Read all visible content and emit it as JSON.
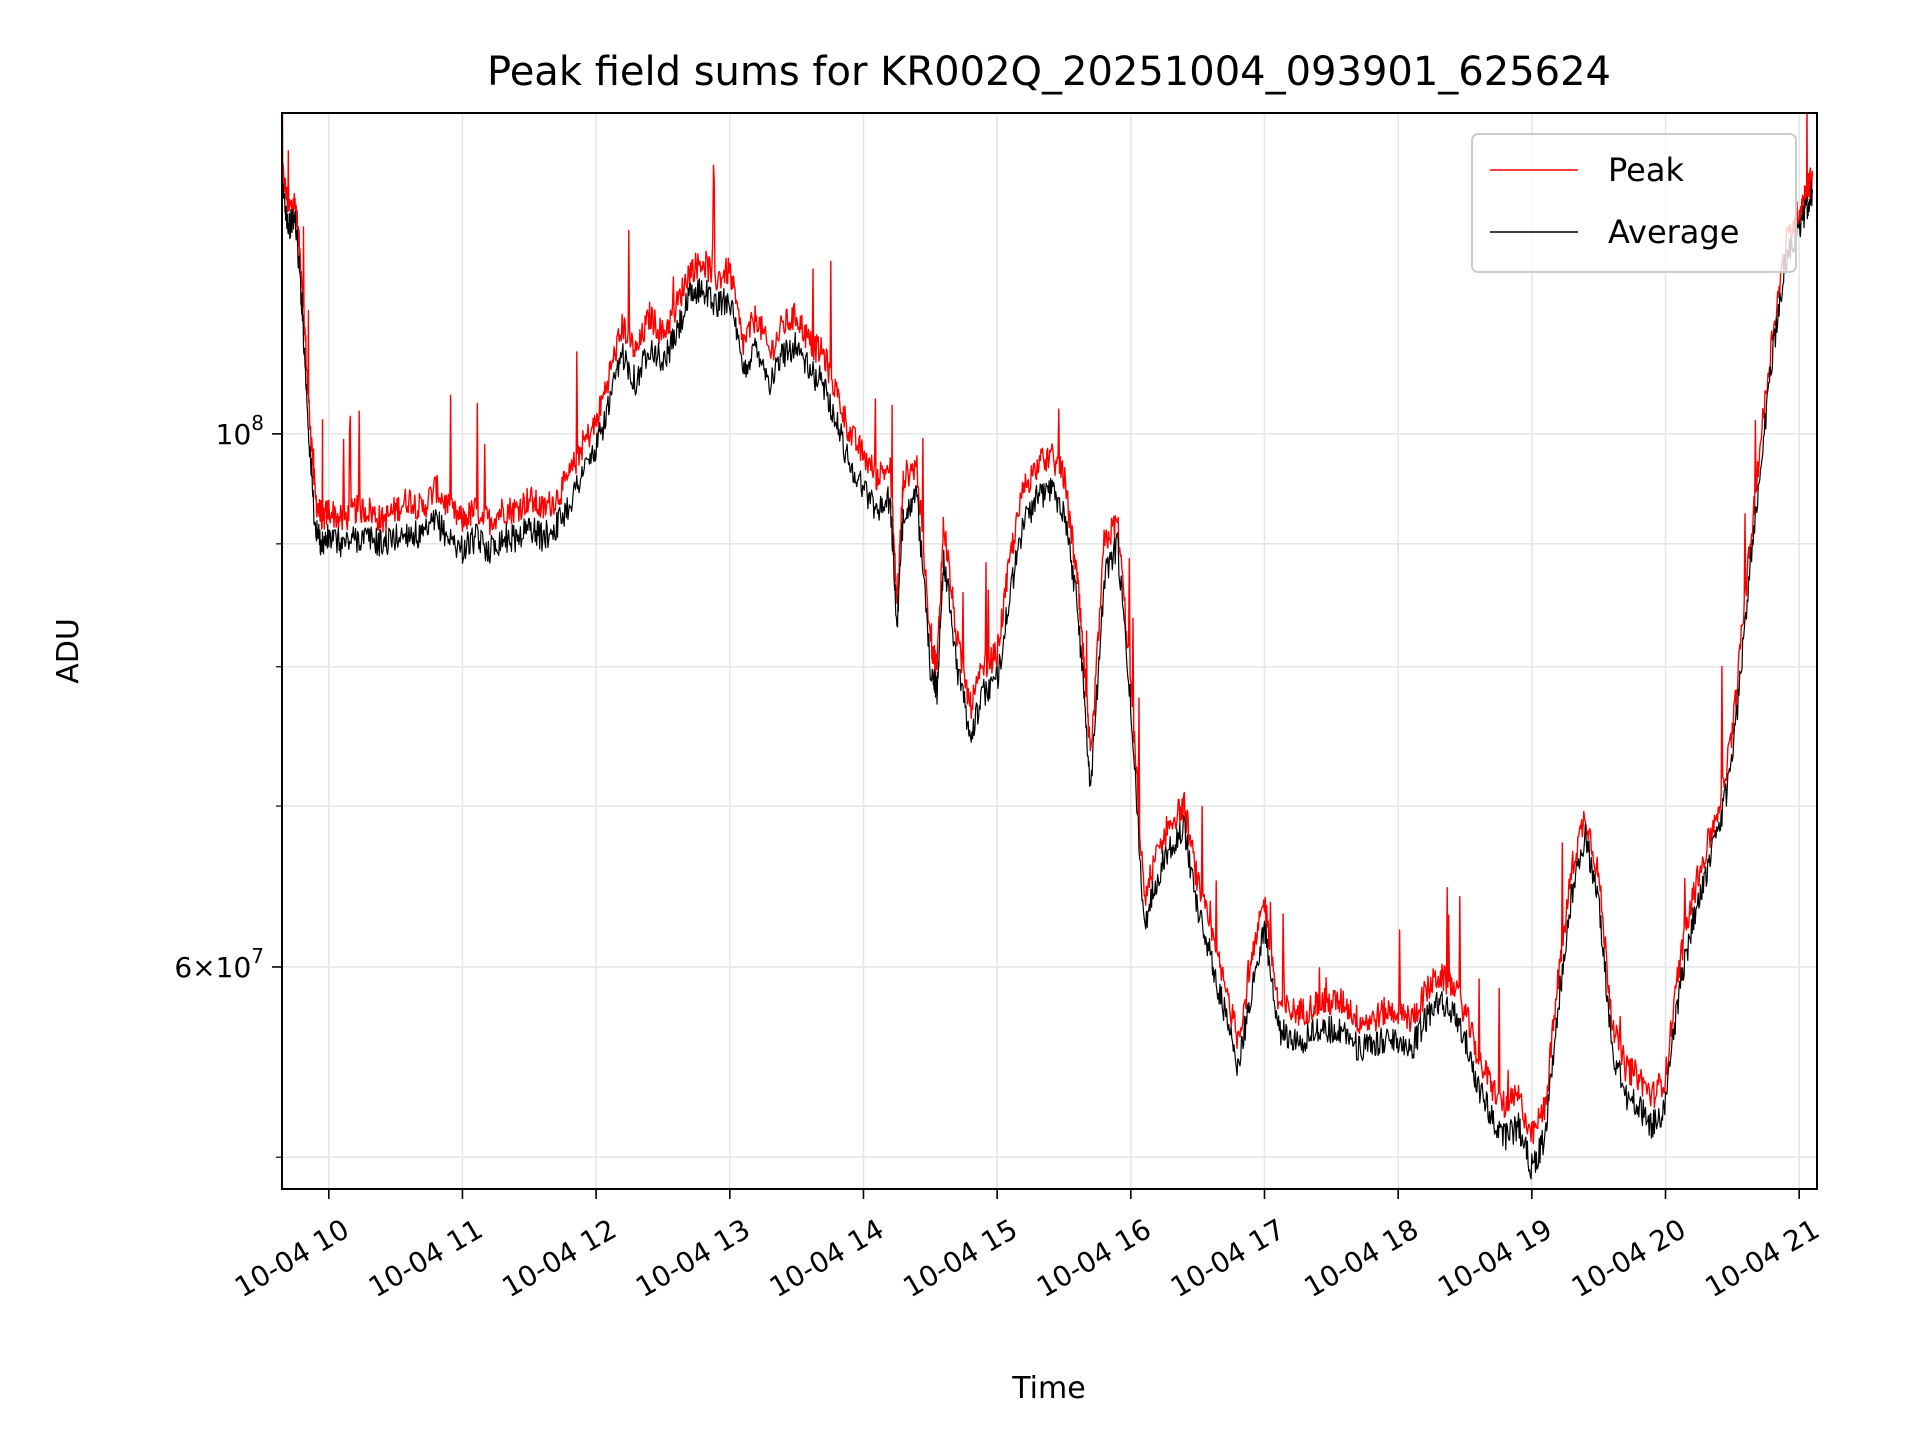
{
  "chart_data": {
    "type": "line",
    "title": "Peak field sums for KR002Q_20251004_093901_625624",
    "xlabel": "Time",
    "ylabel": "ADU",
    "y_scale": "log",
    "grid": true,
    "legend_position": "top-right",
    "xlim": [
      "2025-10-04 09:39",
      "2025-10-04 21:08"
    ],
    "ylim": [
      48500000,
      136000000
    ],
    "x_tick_labels": [
      "10-04 10",
      "10-04 11",
      "10-04 12",
      "10-04 13",
      "10-04 14",
      "10-04 15",
      "10-04 16",
      "10-04 17",
      "10-04 18",
      "10-04 19",
      "10-04 20",
      "10-04 21"
    ],
    "x_tick_hours": [
      10,
      11,
      12,
      13,
      14,
      15,
      16,
      17,
      18,
      19,
      20,
      21
    ],
    "y_major_ticks": [
      {
        "value": 60000000,
        "base": "6",
        "exp": "7"
      },
      {
        "value": 100000000,
        "base": "",
        "exp": "8"
      }
    ],
    "y_minor_ticks": [
      50000000,
      70000000,
      80000000,
      90000000
    ],
    "series": [
      {
        "name": "Peak",
        "color": "#ff0000",
        "x_hours": [
          9.65,
          9.7,
          9.75,
          9.8,
          9.85,
          9.9,
          9.95,
          10.0,
          10.1,
          10.2,
          10.3,
          10.4,
          10.5,
          10.6,
          10.7,
          10.8,
          10.9,
          11.0,
          11.1,
          11.2,
          11.3,
          11.4,
          11.5,
          11.6,
          11.7,
          11.8,
          11.9,
          12.0,
          12.1,
          12.2,
          12.3,
          12.4,
          12.5,
          12.6,
          12.7,
          12.8,
          12.9,
          13.0,
          13.1,
          13.2,
          13.3,
          13.4,
          13.5,
          13.6,
          13.7,
          13.8,
          13.9,
          14.0,
          14.1,
          14.2,
          14.25,
          14.3,
          14.4,
          14.5,
          14.55,
          14.6,
          14.7,
          14.8,
          14.9,
          15.0,
          15.1,
          15.2,
          15.3,
          15.4,
          15.5,
          15.6,
          15.65,
          15.7,
          15.8,
          15.9,
          16.0,
          16.1,
          16.2,
          16.3,
          16.4,
          16.5,
          16.6,
          16.7,
          16.8,
          16.9,
          17.0,
          17.1,
          17.2,
          17.3,
          17.4,
          17.5,
          17.6,
          17.7,
          17.8,
          17.9,
          18.0,
          18.1,
          18.2,
          18.3,
          18.4,
          18.5,
          18.6,
          18.7,
          18.8,
          18.9,
          19.0,
          19.1,
          19.2,
          19.3,
          19.4,
          19.5,
          19.6,
          19.7,
          19.8,
          19.9,
          20.0,
          20.1,
          20.2,
          20.3,
          20.4,
          20.5,
          20.6,
          20.7,
          20.8,
          20.9,
          21.0,
          21.05,
          21.1
        ],
        "y_values": [
          129000000,
          124000000,
          125000000,
          116000000,
          103000000,
          94000000,
          92000000,
          93000000,
          92000000,
          93000000,
          93000000,
          92000000,
          93000000,
          94000000,
          93000000,
          95000000,
          93000000,
          92000000,
          93000000,
          92000000,
          93000000,
          93000000,
          94000000,
          93000000,
          94000000,
          96000000,
          99000000,
          101000000,
          106000000,
          111000000,
          108000000,
          112000000,
          110000000,
          113000000,
          117000000,
          118000000,
          116000000,
          117000000,
          109000000,
          112000000,
          108000000,
          111000000,
          112000000,
          109000000,
          108000000,
          104000000,
          100000000,
          98000000,
          96000000,
          97000000,
          85000000,
          96000000,
          97000000,
          82000000,
          80000000,
          92000000,
          82000000,
          77000000,
          80000000,
          81000000,
          89000000,
          95000000,
          97000000,
          98000000,
          96000000,
          87000000,
          80000000,
          73000000,
          90000000,
          92000000,
          79000000,
          64000000,
          67000000,
          69000000,
          70000000,
          65000000,
          62000000,
          59000000,
          56000000,
          60000000,
          64000000,
          58000000,
          57500000,
          57500000,
          58000000,
          58000000,
          58000000,
          57000000,
          57000000,
          57500000,
          57500000,
          57000000,
          58500000,
          59500000,
          59000000,
          57500000,
          55000000,
          53500000,
          52500000,
          53000000,
          51000000,
          52500000,
          59500000,
          66000000,
          69500000,
          65500000,
          57000000,
          54500000,
          54000000,
          53000000,
          54000000,
          60000000,
          64000000,
          67000000,
          70000000,
          75000000,
          86000000,
          98000000,
          110000000,
          120000000,
          124000000,
          126000000,
          128000000
        ]
      },
      {
        "name": "Average",
        "color": "#000000",
        "x_hours": [
          9.65,
          9.7,
          9.75,
          9.8,
          9.85,
          9.9,
          9.95,
          10.0,
          10.1,
          10.2,
          10.3,
          10.4,
          10.5,
          10.6,
          10.7,
          10.8,
          10.9,
          11.0,
          11.1,
          11.2,
          11.3,
          11.4,
          11.5,
          11.6,
          11.7,
          11.8,
          11.9,
          12.0,
          12.1,
          12.2,
          12.3,
          12.4,
          12.5,
          12.6,
          12.7,
          12.8,
          12.9,
          13.0,
          13.1,
          13.2,
          13.3,
          13.4,
          13.5,
          13.6,
          13.7,
          13.8,
          13.9,
          14.0,
          14.1,
          14.2,
          14.25,
          14.3,
          14.4,
          14.5,
          14.55,
          14.6,
          14.7,
          14.8,
          14.9,
          15.0,
          15.1,
          15.2,
          15.3,
          15.4,
          15.5,
          15.6,
          15.65,
          15.7,
          15.8,
          15.9,
          16.0,
          16.1,
          16.2,
          16.3,
          16.4,
          16.5,
          16.6,
          16.7,
          16.8,
          16.9,
          17.0,
          17.1,
          17.2,
          17.3,
          17.4,
          17.5,
          17.6,
          17.7,
          17.8,
          17.9,
          18.0,
          18.1,
          18.2,
          18.3,
          18.4,
          18.5,
          18.6,
          18.7,
          18.8,
          18.9,
          19.0,
          19.1,
          19.2,
          19.3,
          19.4,
          19.5,
          19.6,
          19.7,
          19.8,
          19.9,
          20.0,
          20.1,
          20.2,
          20.3,
          20.4,
          20.5,
          20.6,
          20.7,
          20.8,
          20.9,
          21.0,
          21.05,
          21.1
        ],
        "y_values": [
          127000000,
          122000000,
          123000000,
          113000000,
          100000000,
          91000000,
          90000000,
          90500000,
          90000000,
          90500000,
          90500000,
          90000000,
          90500000,
          91000000,
          90500000,
          92000000,
          90500000,
          89500000,
          90500000,
          89500000,
          90500000,
          90500000,
          91500000,
          90500000,
          91500000,
          93500000,
          96500000,
          98500000,
          103000000,
          108000000,
          105000000,
          109000000,
          107000000,
          110000000,
          114000000,
          115000000,
          113000000,
          114000000,
          106000000,
          109000000,
          105000000,
          108000000,
          109000000,
          106000000,
          105000000,
          101000000,
          97000000,
          95000000,
          93000000,
          94000000,
          83000000,
          93000000,
          94000000,
          80000000,
          78000000,
          89000000,
          80000000,
          75000000,
          78000000,
          79000000,
          86000000,
          92000000,
          94000000,
          95000000,
          93000000,
          85000000,
          78000000,
          71000000,
          87000000,
          90000000,
          77000000,
          62500000,
          65500000,
          67500000,
          68500000,
          63500000,
          60500000,
          57500000,
          54500000,
          58500000,
          62500000,
          56500000,
          56000000,
          56000000,
          56500000,
          56500000,
          56500000,
          55500000,
          55500000,
          56000000,
          56000000,
          55500000,
          57000000,
          58000000,
          57500000,
          56000000,
          53500000,
          52000000,
          51000000,
          51500000,
          49500000,
          51000000,
          58000000,
          64500000,
          68000000,
          64000000,
          55500000,
          53000000,
          52500000,
          51500000,
          52500000,
          58500000,
          62500000,
          65500000,
          68500000,
          73000000,
          84000000,
          96000000,
          108000000,
          118000000,
          122000000,
          124000000,
          126000000
        ]
      }
    ]
  }
}
